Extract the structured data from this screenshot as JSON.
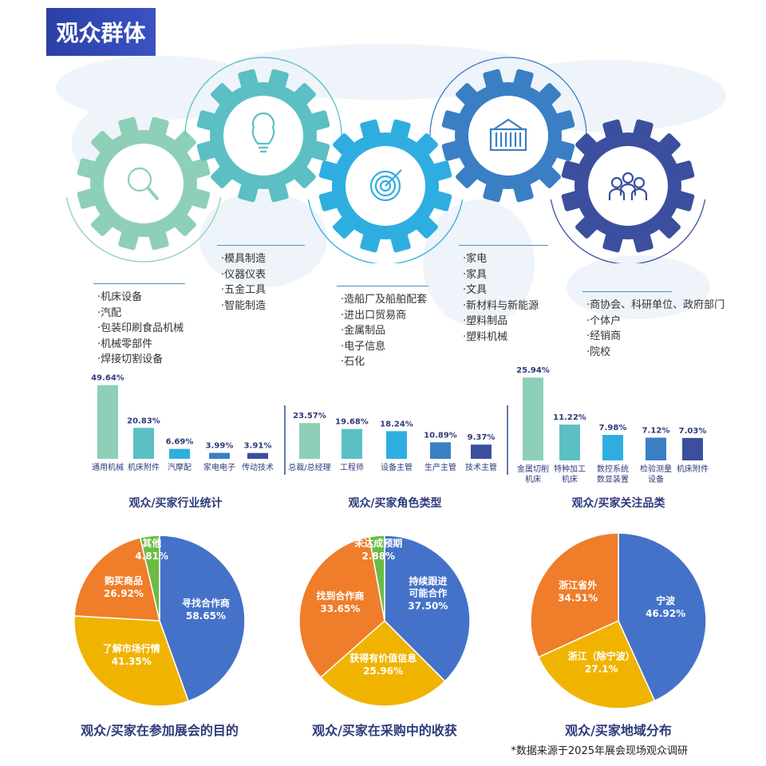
{
  "header": {
    "title": "观众群体"
  },
  "gear_colors": [
    "#8ecfb8",
    "#5bbfc4",
    "#2eaee0",
    "#3a7fc4",
    "#3b4f9e"
  ],
  "gear_icons": [
    "magnifier-icon",
    "lightbulb-icon",
    "target-icon",
    "container-icon",
    "people-icon"
  ],
  "lists": [
    {
      "items": [
        "·机床设备",
        "·汽配",
        "·包装印刷食品机械",
        "·机械零部件",
        "·焊接切割设备"
      ]
    },
    {
      "items": [
        "·模具制造",
        "·仪器仪表",
        "·五金工具",
        "·智能制造"
      ]
    },
    {
      "items": [
        "·造船厂及船舶配套",
        "·进出口贸易商",
        "·金属制品",
        "·电子信息",
        "·石化"
      ]
    },
    {
      "items": [
        "·家电",
        "·家具",
        "·文具",
        "·新材料与新能源",
        "·塑料制品",
        "·塑料机械"
      ]
    },
    {
      "items": [
        "·商协会、科研单位、政府部门",
        "·个体户",
        "·经销商",
        "·院校"
      ]
    }
  ],
  "chart_data": [
    {
      "type": "bar",
      "title": "观众/买家行业统计",
      "categories": [
        "通用机械",
        "机床附件",
        "汽摩配",
        "家电电子",
        "传动技术"
      ],
      "values": [
        49.64,
        20.83,
        6.69,
        3.99,
        3.91
      ],
      "labels": [
        "49.64%",
        "20.83%",
        "6.69%",
        "3.99%",
        "3.91%"
      ]
    },
    {
      "type": "bar",
      "title": "观众/买家角色类型",
      "categories": [
        "总裁/总经理",
        "工程师",
        "设备主管",
        "生产主管",
        "技术主管"
      ],
      "values": [
        23.57,
        19.68,
        18.24,
        10.89,
        9.37
      ],
      "labels": [
        "23.57%",
        "19.68%",
        "18.24%",
        "10.89%",
        "9.37%"
      ]
    },
    {
      "type": "bar",
      "title": "观众/买家关注品类",
      "categories": [
        "金属切削机床",
        "特种加工机床",
        "数控系统数显装置",
        "检验测量设备",
        "机床附件"
      ],
      "category_lines": [
        [
          "金属切削",
          "机床"
        ],
        [
          "特种加工",
          "机床"
        ],
        [
          "数控系统",
          "数显装置"
        ],
        [
          "检验测量",
          "设备"
        ],
        [
          "机床附件"
        ]
      ],
      "values": [
        25.94,
        11.22,
        7.98,
        7.12,
        7.03
      ],
      "labels": [
        "25.94%",
        "11.22%",
        "7.98%",
        "7.12%",
        "7.03%"
      ]
    },
    {
      "type": "pie",
      "title": "观众/买家在参加展会的目的",
      "slices": [
        {
          "name": "寻找合作商",
          "value": 58.65,
          "label": "58.65%",
          "color": "#4472c8"
        },
        {
          "name": "了解市场行情",
          "value": 41.35,
          "label": "41.35%",
          "color": "#f0b400"
        },
        {
          "name": "购买商品",
          "value": 26.92,
          "label": "26.92%",
          "color": "#ef7d2a"
        },
        {
          "name": "其他",
          "value": 4.81,
          "label": "4.81%",
          "color": "#6cbb45"
        }
      ]
    },
    {
      "type": "pie",
      "title": "观众/买家在采购中的收获",
      "slices": [
        {
          "name": "持续跟进可能合作",
          "lines": [
            "持续跟进",
            "可能合作"
          ],
          "value": 37.5,
          "label": "37.50%",
          "color": "#4472c8"
        },
        {
          "name": "获得有价值信息",
          "value": 25.96,
          "label": "25.96%",
          "color": "#f0b400"
        },
        {
          "name": "找到合作商",
          "value": 33.65,
          "label": "33.65%",
          "color": "#ef7d2a"
        },
        {
          "name": "未达成预期",
          "value": 2.88,
          "label": "2.88%",
          "color": "#6cbb45"
        }
      ]
    },
    {
      "type": "pie",
      "title": "观众/买家地域分布",
      "slices": [
        {
          "name": "宁波",
          "value": 46.92,
          "label": "46.92%",
          "color": "#4472c8"
        },
        {
          "name": "浙江（除宁波）",
          "value": 27.1,
          "label": "27.1%",
          "color": "#f0b400"
        },
        {
          "name": "浙江省外",
          "value": 34.51,
          "label": "34.51%",
          "color": "#ef7d2a"
        }
      ]
    }
  ],
  "footnote": "*数据来源于2025年展会现场观众调研"
}
